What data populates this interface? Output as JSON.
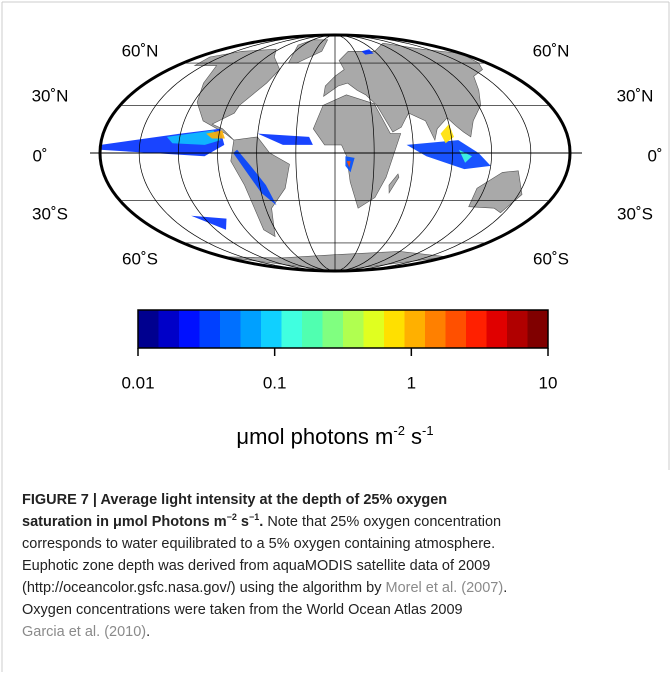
{
  "figure": {
    "lat_labels": [
      "60˚N",
      "30˚N",
      "0˚",
      "30˚S",
      "60˚S"
    ],
    "colorbar": {
      "scale": "log",
      "lim": [
        0.01,
        10
      ],
      "ticks": [
        0.01,
        0.1,
        1,
        10
      ],
      "colors": [
        "#00008f",
        "#0000c8",
        "#0010ff",
        "#0040ff",
        "#0070ff",
        "#00a0ff",
        "#10d0ff",
        "#40ffe0",
        "#50ffb0",
        "#80ff80",
        "#b0ff50",
        "#e0ff20",
        "#ffe000",
        "#ffb000",
        "#ff8000",
        "#ff5000",
        "#ff2000",
        "#e00000",
        "#b00000",
        "#800000"
      ]
    },
    "unit_label": {
      "base": "μmol photons m",
      "exp1": "-2",
      "mid": " s",
      "exp2": "-1"
    }
  },
  "caption": {
    "lines": [
      [
        {
          "text": "FIGURE 7 | Average light intensity at the depth of 25% oxygen",
          "style": "bold"
        }
      ],
      [
        {
          "text": "saturation in μmol Photons m",
          "style": "bold"
        },
        {
          "text": "−2",
          "style": "bold-sup"
        },
        {
          "text": " s",
          "style": "bold"
        },
        {
          "text": "−1",
          "style": "bold-sup"
        },
        {
          "text": ".",
          "style": "bold"
        },
        {
          "text": " Note that 25% oxygen concentration",
          "style": "plain"
        }
      ],
      [
        {
          "text": "corresponds to water equilibrated to a 5% oxygen containing atmosphere.",
          "style": "plain"
        }
      ],
      [
        {
          "text": "Euphotic zone depth was derived from aquaMODIS satellite data of 2009",
          "style": "plain"
        }
      ],
      [
        {
          "text": "(http://oceancolor.gsfc.nasa.gov/) using the algorithm by ",
          "style": "plain"
        },
        {
          "text": "Morel et al. (2007)",
          "style": "link"
        },
        {
          "text": ".",
          "style": "plain"
        }
      ],
      [
        {
          "text": "Oxygen concentrations were taken from the World Ocean Atlas 2009",
          "style": "plain"
        }
      ],
      [
        {
          "text": "Garcia et al. (2010)",
          "style": "link"
        },
        {
          "text": ".",
          "style": "plain"
        }
      ]
    ]
  }
}
